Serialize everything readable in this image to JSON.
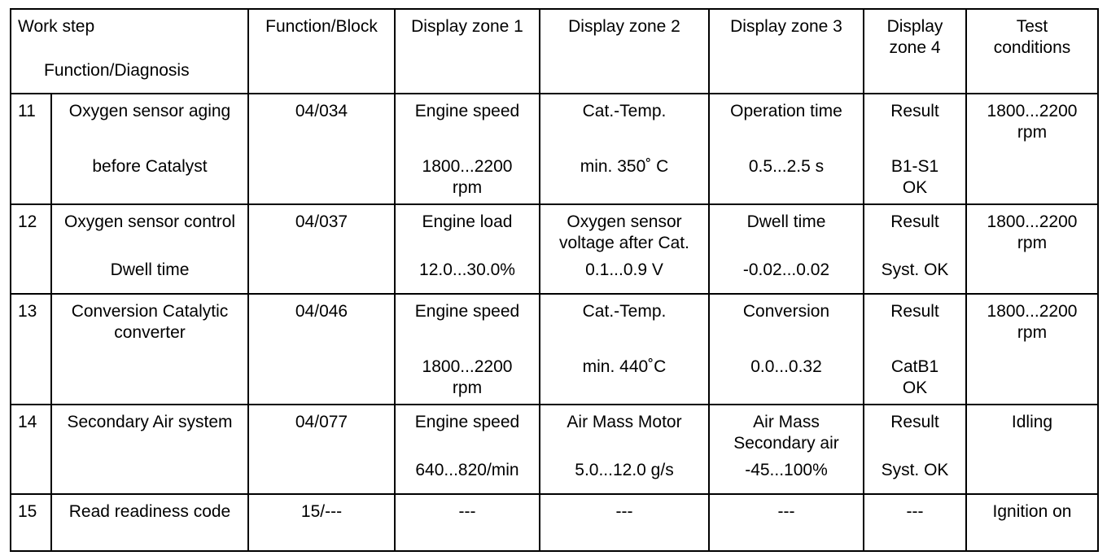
{
  "headers": {
    "work_step": "Work step",
    "function_diagnosis": "Function/Diagnosis",
    "function_block": "Function/Block",
    "zone1": "Display zone 1",
    "zone2": "Display zone 2",
    "zone3": "Display zone 3",
    "zone4": "Display zone 4",
    "test_conditions": "Test conditions"
  },
  "rows": [
    {
      "step": "11",
      "function": "Oxygen sensor aging",
      "function_sub": "before Catalyst",
      "block": "04/034",
      "zone1": "Engine speed",
      "zone1_value": "1800...2200 rpm",
      "zone2": "Cat.-Temp.",
      "zone2_value": "min. 350˚ C",
      "zone3": "Operation time",
      "zone3_value": "0.5...2.5 s",
      "zone4": "Result",
      "zone4_value": "B1-S1 OK",
      "test": "1800...2200 rpm"
    },
    {
      "step": "12",
      "function": "Oxygen sensor control",
      "function_sub": "Dwell time",
      "block": "04/037",
      "zone1": "Engine load",
      "zone1_value": "12.0...30.0%",
      "zone2": "Oxygen sensor voltage after Cat.",
      "zone2_value": "0.1...0.9 V",
      "zone3": "Dwell time",
      "zone3_value": "-0.02...0.02",
      "zone4": "Result",
      "zone4_value": "Syst. OK",
      "test": "1800...2200 rpm"
    },
    {
      "step": "13",
      "function": "Conversion Catalytic converter",
      "function_sub": "",
      "block": "04/046",
      "zone1": "Engine speed",
      "zone1_value": "1800...2200 rpm",
      "zone2": "Cat.-Temp.",
      "zone2_value": "min. 440˚C",
      "zone3": "Conversion",
      "zone3_value": "0.0...0.32",
      "zone4": "Result",
      "zone4_value": "CatB1 OK",
      "test": "1800...2200 rpm"
    },
    {
      "step": "14",
      "function": "Secondary Air system",
      "function_sub": "",
      "block": "04/077",
      "zone1": "Engine speed",
      "zone1_value": "640...820/min",
      "zone2": "Air Mass Motor",
      "zone2_value": "5.0...12.0 g/s",
      "zone3": "Air Mass Secondary air",
      "zone3_value": "-45...100%",
      "zone4": "Result",
      "zone4_value": "Syst. OK",
      "test": "Idling"
    },
    {
      "step": "15",
      "function": "Read readiness code",
      "function_sub": "",
      "block": "15/---",
      "zone1": "---",
      "zone1_value": "",
      "zone2": "---",
      "zone2_value": "",
      "zone3": "---",
      "zone3_value": "",
      "zone4": "---",
      "zone4_value": "",
      "test": "Ignition on"
    }
  ]
}
